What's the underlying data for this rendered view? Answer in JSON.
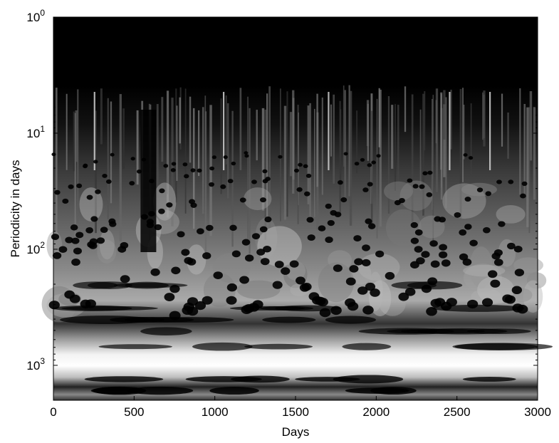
{
  "chart_data": {
    "type": "heatmap",
    "title": "",
    "xlabel": "Days",
    "ylabel": "Periodicity in days",
    "x_ticks": [
      {
        "value": 0,
        "label": "0"
      },
      {
        "value": 500,
        "label": "500"
      },
      {
        "value": 1000,
        "label": "1000"
      },
      {
        "value": 1500,
        "label": "1500"
      },
      {
        "value": 2000,
        "label": "2000"
      },
      {
        "value": 2500,
        "label": "2500"
      },
      {
        "value": 3000,
        "label": "3000"
      }
    ],
    "y_ticks": [
      {
        "value": 1,
        "base": "10",
        "exp": "0"
      },
      {
        "value": 10,
        "base": "10",
        "exp": "1"
      },
      {
        "value": 100,
        "base": "10",
        "exp": "2"
      },
      {
        "value": 1000,
        "base": "10",
        "exp": "3"
      }
    ],
    "xlim": [
      0,
      3000
    ],
    "ylim": [
      1,
      2000
    ],
    "y_scale": "log",
    "y_reversed": true,
    "colormap": "gray",
    "colors": {
      "low": "#000000",
      "high": "#ffffff"
    },
    "grid": false,
    "legend": "none"
  }
}
